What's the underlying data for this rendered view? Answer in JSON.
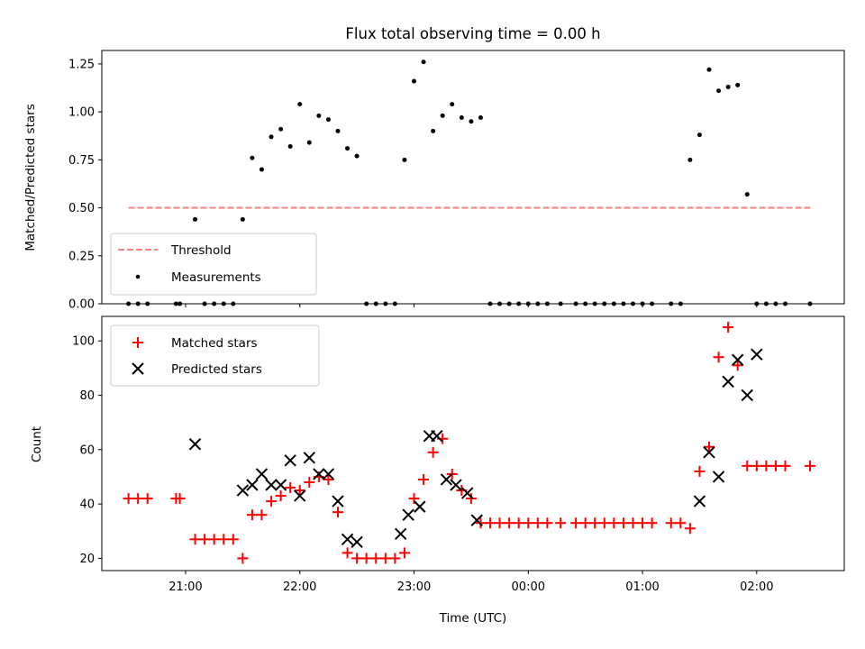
{
  "chart_data": [
    {
      "type": "scatter",
      "title": "Flux total observing time = 0.00 h",
      "xlabel": "",
      "ylabel": "Matched/Predicted stars",
      "ylim": [
        0,
        1.32
      ],
      "yticks": [
        0.0,
        0.25,
        0.5,
        0.75,
        1.0,
        1.25
      ],
      "ytick_labels": [
        "0.00",
        "0.25",
        "0.50",
        "0.75",
        "1.00",
        "1.25"
      ],
      "xlim": [
        "20:16",
        "02:46"
      ],
      "legend": {
        "placement": "lower-left",
        "entries": [
          "Threshold",
          "Measurements"
        ]
      },
      "threshold": {
        "name": "Threshold",
        "y": 0.5,
        "x_start": "20:30",
        "x_end": "02:28",
        "color": "#ff7f7f",
        "style": "dashed"
      },
      "series": [
        {
          "name": "Measurements",
          "color": "#000000",
          "marker": "dot",
          "x": [
            "20:30",
            "20:35",
            "20:40",
            "20:55",
            "20:57",
            "21:05",
            "21:10",
            "21:15",
            "21:20",
            "21:25",
            "21:30",
            "21:35",
            "21:40",
            "21:45",
            "21:50",
            "21:55",
            "22:00",
            "22:05",
            "22:10",
            "22:15",
            "22:20",
            "22:25",
            "22:30",
            "22:35",
            "22:40",
            "22:45",
            "22:50",
            "22:55",
            "23:00",
            "23:05",
            "23:10",
            "23:15",
            "23:20",
            "23:25",
            "23:30",
            "23:35",
            "23:40",
            "23:45",
            "23:50",
            "23:55",
            "00:00",
            "00:05",
            "00:10",
            "00:17",
            "00:25",
            "00:30",
            "00:35",
            "00:40",
            "00:45",
            "00:50",
            "00:55",
            "01:00",
            "01:05",
            "01:15",
            "01:20",
            "01:25",
            "01:30",
            "01:35",
            "01:40",
            "01:45",
            "01:50",
            "01:55",
            "02:00",
            "02:05",
            "02:10",
            "02:15",
            "02:28"
          ],
          "y": [
            0.0,
            0.0,
            0.0,
            0.0,
            0.0,
            0.44,
            0.0,
            0.0,
            0.0,
            0.0,
            0.44,
            0.76,
            0.7,
            0.87,
            0.91,
            0.82,
            1.04,
            0.84,
            0.98,
            0.96,
            0.9,
            0.81,
            0.77,
            0.0,
            0.0,
            0.0,
            0.0,
            0.75,
            1.16,
            1.26,
            0.9,
            0.98,
            1.04,
            0.97,
            0.95,
            0.97,
            0.0,
            0.0,
            0.0,
            0.0,
            0.0,
            0.0,
            0.0,
            0.0,
            0.0,
            0.0,
            0.0,
            0.0,
            0.0,
            0.0,
            0.0,
            0.0,
            0.0,
            0.0,
            0.0,
            0.75,
            0.88,
            1.22,
            1.11,
            1.13,
            1.14,
            0.57,
            0.0,
            0.0,
            0.0,
            0.0,
            0.0
          ]
        }
      ]
    },
    {
      "type": "scatter",
      "title": "",
      "xlabel": "Time (UTC)",
      "ylabel": "Count",
      "ylim": [
        15.5,
        109
      ],
      "yticks": [
        20,
        40,
        60,
        80,
        100
      ],
      "ytick_labels": [
        "20",
        "40",
        "60",
        "80",
        "100"
      ],
      "xlim": [
        "20:16",
        "02:46"
      ],
      "xticks": [
        "21:00",
        "22:00",
        "23:00",
        "00:00",
        "01:00",
        "02:00"
      ],
      "xtick_labels": [
        "21:00",
        "22:00",
        "23:00",
        "00:00",
        "01:00",
        "02:00"
      ],
      "legend": {
        "placement": "top-left",
        "entries": [
          "Matched stars",
          "Predicted stars"
        ]
      },
      "series": [
        {
          "name": "Matched stars",
          "color": "#ff0000",
          "marker": "plus",
          "x": [
            "20:30",
            "20:35",
            "20:40",
            "20:55",
            "20:57",
            "21:05",
            "21:10",
            "21:15",
            "21:20",
            "21:25",
            "21:30",
            "21:35",
            "21:40",
            "21:45",
            "21:50",
            "21:55",
            "22:00",
            "22:05",
            "22:10",
            "22:15",
            "22:20",
            "22:25",
            "22:30",
            "22:35",
            "22:40",
            "22:45",
            "22:50",
            "22:55",
            "23:00",
            "23:05",
            "23:10",
            "23:15",
            "23:20",
            "23:25",
            "23:30",
            "23:35",
            "23:40",
            "23:45",
            "23:50",
            "23:55",
            "00:00",
            "00:05",
            "00:10",
            "00:17",
            "00:25",
            "00:30",
            "00:35",
            "00:40",
            "00:45",
            "00:50",
            "00:55",
            "01:00",
            "01:05",
            "01:15",
            "01:20",
            "01:25",
            "01:30",
            "01:35",
            "01:40",
            "01:45",
            "01:50",
            "01:55",
            "02:00",
            "02:05",
            "02:10",
            "02:15",
            "02:28"
          ],
          "y": [
            42,
            42,
            42,
            42,
            42,
            27,
            27,
            27,
            27,
            27,
            20,
            36,
            36,
            41,
            43,
            46,
            45,
            48,
            50,
            49,
            37,
            22,
            20,
            20,
            20,
            20,
            20,
            22,
            42,
            49,
            59,
            64,
            51,
            45,
            42,
            33,
            33,
            33,
            33,
            33,
            33,
            33,
            33,
            33,
            33,
            33,
            33,
            33,
            33,
            33,
            33,
            33,
            33,
            33,
            33,
            31,
            52,
            61,
            94,
            105,
            91,
            54,
            54,
            54,
            54,
            54,
            54
          ]
        },
        {
          "name": "Predicted stars",
          "color": "#000000",
          "marker": "x",
          "x": [
            "21:05",
            "21:30",
            "21:35",
            "21:40",
            "21:45",
            "21:50",
            "21:55",
            "22:00",
            "22:05",
            "22:10",
            "22:15",
            "22:20",
            "22:25",
            "22:30",
            "22:53",
            "22:57",
            "23:03",
            "23:08",
            "23:12",
            "23:17",
            "23:22",
            "23:28",
            "23:33",
            "01:30",
            "01:35",
            "01:40",
            "01:45",
            "01:50",
            "01:55",
            "02:00"
          ],
          "y": [
            62,
            45,
            47,
            51,
            47,
            47,
            56,
            43,
            57,
            51,
            51,
            41,
            27,
            26,
            29,
            36,
            39,
            65,
            65,
            49,
            47,
            44,
            34,
            41,
            59,
            50,
            85,
            93,
            80,
            95
          ]
        }
      ]
    }
  ]
}
